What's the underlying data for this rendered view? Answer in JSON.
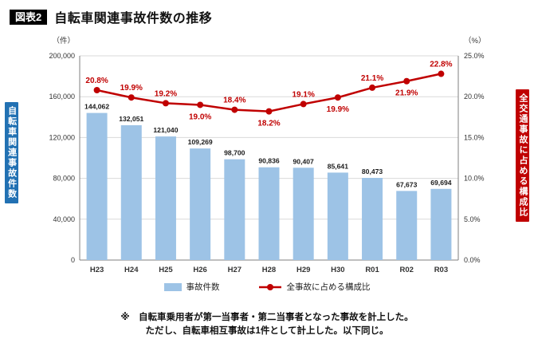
{
  "header": {
    "tag": "図表2",
    "title": "自転車関連事故件数の推移"
  },
  "axis_labels": {
    "left_vertical": "自転車関連事故件数",
    "right_vertical": "全交通事故に占める構成比",
    "left_unit": "（件）",
    "right_unit": "（%）"
  },
  "legend": {
    "bars": "事故件数",
    "line": "全事故に占める構成比"
  },
  "footnote": {
    "line1": "※　自転車乗用者が第一当事者・第二当事者となった事故を計上した。",
    "line2": "ただし、自転車相互事故は1件として計上した。以下同じ。"
  },
  "colors": {
    "bar": "#9DC3E6",
    "line": "#C00000",
    "left_label_bg": "#2271B3",
    "right_label_bg": "#C00000",
    "grid": "#d9d9d9",
    "axis": "#7f7f7f"
  },
  "chart_data": {
    "type": "bar+line",
    "title": "自転車関連事故件数の推移",
    "categories": [
      "H23",
      "H24",
      "H25",
      "H26",
      "H27",
      "H28",
      "H29",
      "H30",
      "R01",
      "R02",
      "R03"
    ],
    "series": [
      {
        "name": "事故件数",
        "type": "bar",
        "axis": "left",
        "values": [
          144062,
          132051,
          121040,
          109269,
          98700,
          90836,
          90407,
          85641,
          80473,
          67673,
          69694
        ]
      },
      {
        "name": "全事故に占める構成比",
        "type": "line",
        "axis": "right",
        "values": [
          20.8,
          19.9,
          19.2,
          19.0,
          18.4,
          18.2,
          19.1,
          19.9,
          21.1,
          21.9,
          22.8
        ]
      }
    ],
    "left_axis": {
      "min": 0,
      "max": 200000,
      "step": 40000,
      "tick_labels": [
        "0",
        "40,000",
        "80,000",
        "120,000",
        "160,000",
        "200,000"
      ]
    },
    "right_axis": {
      "min": 0,
      "max": 25,
      "step": 5,
      "tick_labels": [
        "0.0%",
        "5.0%",
        "10.0%",
        "15.0%",
        "20.0%",
        "25.0%"
      ]
    },
    "bar_labels": [
      "144,062",
      "132,051",
      "121,040",
      "109,269",
      "98,700",
      "90,836",
      "90,407",
      "85,641",
      "80,473",
      "67,673",
      "69,694"
    ],
    "line_labels": [
      "20.8%",
      "19.9%",
      "19.2%",
      "19.0%",
      "18.4%",
      "18.2%",
      "19.1%",
      "19.9%",
      "21.1%",
      "21.9%",
      "22.8%"
    ],
    "line_label_position": [
      "above",
      "above",
      "above",
      "below",
      "above",
      "below",
      "above",
      "below",
      "above",
      "below",
      "above"
    ],
    "grid": true,
    "legend_position": "bottom"
  }
}
